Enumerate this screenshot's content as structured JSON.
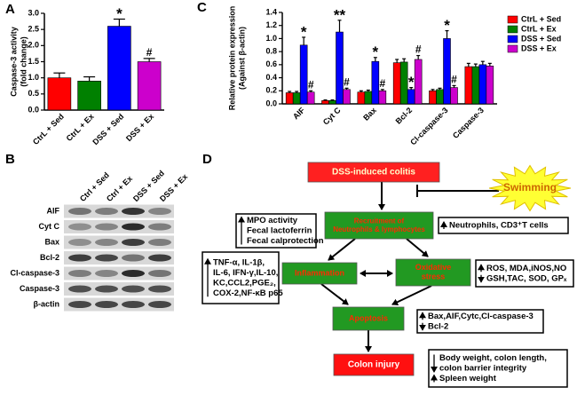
{
  "chart_data": [
    {
      "type": "bar",
      "panel_label": "A",
      "y_label": [
        "Caspase-3 activity",
        "(fold change)"
      ],
      "categories": [
        "CtrL + Sed",
        "CtrL + Ex",
        "DSS + Sed",
        "DSS + Ex"
      ],
      "values": [
        1.0,
        0.9,
        2.6,
        1.5
      ],
      "errors": [
        0.15,
        0.13,
        0.22,
        0.1
      ],
      "colors": [
        "#ff0000",
        "#008000",
        "#0000ff",
        "#cc00cc"
      ],
      "annotations": [
        null,
        null,
        "*",
        "#"
      ],
      "ylim": [
        0,
        3
      ],
      "yticks": [
        {
          "value": 0,
          "label": "0.0"
        },
        {
          "value": 0.5,
          "label": "0.5"
        },
        {
          "value": 1,
          "label": "1.0"
        },
        {
          "value": 1.5,
          "label": "1.5"
        },
        {
          "value": 2,
          "label": "2.0"
        },
        {
          "value": 2.5,
          "label": "2.5"
        },
        {
          "value": 3,
          "label": "3.0"
        }
      ]
    },
    {
      "type": "grouped_bar",
      "panel_label": "C",
      "y_label": [
        "Relative protein expression",
        "(Against β-actin)"
      ],
      "categories": [
        "AIF",
        "Cyt C",
        "Bax",
        "Bcl-2",
        "Cl-caspase-3",
        "Caspase-3"
      ],
      "series": [
        {
          "name": "CtrL + Sed",
          "color": "#ff0000",
          "values": [
            0.17,
            0.05,
            0.18,
            0.63,
            0.2,
            0.57
          ],
          "errors": [
            0.02,
            0.01,
            0.02,
            0.05,
            0.02,
            0.05
          ],
          "annotations": [
            null,
            null,
            null,
            null,
            null,
            null
          ]
        },
        {
          "name": "CtrL + Ex",
          "color": "#008000",
          "values": [
            0.17,
            0.05,
            0.19,
            0.64,
            0.22,
            0.57
          ],
          "errors": [
            0.02,
            0.01,
            0.02,
            0.05,
            0.02,
            0.04
          ],
          "annotations": [
            null,
            null,
            null,
            null,
            null,
            null
          ]
        },
        {
          "name": "DSS + Sed",
          "color": "#0000ff",
          "values": [
            0.9,
            1.1,
            0.65,
            0.22,
            1.0,
            0.6
          ],
          "errors": [
            0.12,
            0.18,
            0.06,
            0.03,
            0.12,
            0.05
          ],
          "annotations": [
            "*",
            "**",
            "*",
            "*",
            "*",
            null
          ]
        },
        {
          "name": "DSS + Ex",
          "color": "#cc00cc",
          "values": [
            0.18,
            0.22,
            0.2,
            0.68,
            0.25,
            0.58
          ],
          "errors": [
            0.02,
            0.02,
            0.02,
            0.06,
            0.03,
            0.04
          ],
          "annotations": [
            "#",
            "#",
            "#",
            "#",
            "#",
            null
          ]
        }
      ],
      "legend": "right",
      "ylim": [
        0,
        1.4
      ],
      "yticks": [
        {
          "value": 0,
          "label": "0.0"
        },
        {
          "value": 0.2,
          "label": "0.2"
        },
        {
          "value": 0.4,
          "label": "0.4"
        },
        {
          "value": 0.6,
          "label": "0.6"
        },
        {
          "value": 0.8,
          "label": "0.8"
        },
        {
          "value": 1,
          "label": "1.0"
        },
        {
          "value": 1.2,
          "label": "1.2"
        },
        {
          "value": 1.4,
          "label": "1.4"
        }
      ]
    }
  ],
  "blot": {
    "panel_label": "B",
    "columns": [
      "Ctrl + Sed",
      "Ctrl + Ex",
      "DSS + Sed",
      "DSS + Ex"
    ],
    "rows": [
      "AIF",
      "Cyt C",
      "Bax",
      "Bcl-2",
      "Cl-caspase-3",
      "Caspase-3",
      "β-actin"
    ]
  },
  "diagram": {
    "panel_label": "D",
    "nodes": [
      {
        "lines": [
          "DSS-induced colitis"
        ]
      },
      {
        "lines": [
          "Swimming"
        ]
      },
      {
        "lines": [
          "Recruitment of",
          "Neutrophils & lymphocytes"
        ]
      },
      {
        "lines": [
          "Inflammation"
        ]
      },
      {
        "lines": [
          "Oxidative",
          "stress"
        ]
      },
      {
        "lines": [
          "Apoptosis"
        ]
      },
      {
        "lines": [
          "Colon injury"
        ]
      }
    ],
    "notes": [
      {
        "items": [
          {
            "direction": "up",
            "lines": [
              "MPO activity",
              "Fecal lactoferrin",
              "Fecal calprotection"
            ]
          }
        ]
      },
      {
        "items": [
          {
            "direction": "up",
            "lines": [
              "Neutrophils, CD3⁺T cells"
            ]
          }
        ]
      },
      {
        "items": [
          {
            "direction": "up",
            "lines": [
              "TNF-α, IL-1β,",
              "IL-6, IFN-γ,IL-10,",
              "KC,CCL2,PGE₂,",
              "COX-2,NF-κB p65"
            ]
          }
        ]
      },
      {
        "items": [
          {
            "direction": "up",
            "lines": [
              "ROS, MDA,iNOS,NO"
            ]
          },
          {
            "direction": "down",
            "lines": [
              "GSH,TAC, SOD, GPₓ"
            ]
          }
        ]
      },
      {
        "items": [
          {
            "direction": "up",
            "lines": [
              "Bax,AIF,Cytc,Cl-caspase-3"
            ]
          },
          {
            "direction": "down",
            "lines": [
              "Bcl-2"
            ]
          }
        ]
      },
      {
        "items": [
          {
            "direction": "down",
            "lines": [
              "Body weight, colon length,",
              "colon barrier integrity"
            ]
          },
          {
            "direction": "up",
            "lines": [
              "Spleen weight"
            ]
          }
        ]
      }
    ]
  }
}
